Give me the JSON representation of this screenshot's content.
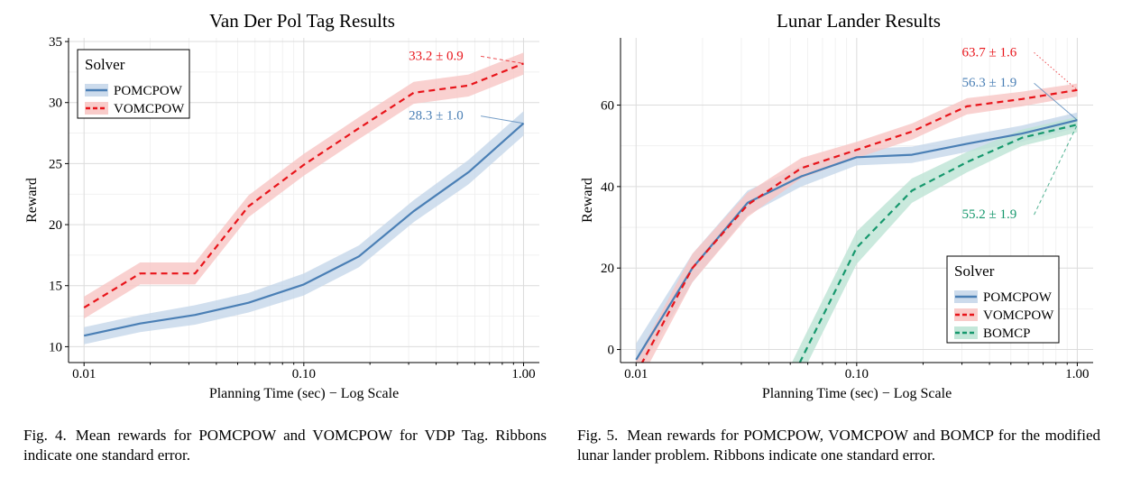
{
  "charts": [
    {
      "title": "Van Der Pol Tag Results",
      "chart_data": {
        "type": "line",
        "title": "Van Der Pol Tag Results",
        "xlabel": "Planning Time (sec) − Log Scale",
        "ylabel": "Reward",
        "x_scale": "log",
        "xlim": [
          0.0085,
          1.18
        ],
        "ylim": [
          8.7,
          35.3
        ],
        "x_ticks": [
          0.01,
          0.1,
          1.0
        ],
        "x_tick_labels": [
          "0.01",
          "0.10",
          "1.00"
        ],
        "y_ticks": [
          10,
          15,
          20,
          25,
          30,
          35
        ],
        "y_tick_labels": [
          "10",
          "15",
          "20",
          "25",
          "30",
          "35"
        ],
        "grid": true,
        "legend": {
          "title": "Solver",
          "position": "top-left"
        },
        "series": [
          {
            "name": "POMCPOW",
            "color": "#4a7fb5",
            "ribbon_color": "#c6d7ea",
            "dash": "solid",
            "x": [
              0.01,
              0.018,
              0.032,
              0.056,
              0.1,
              0.178,
              0.316,
              0.562,
              1.0
            ],
            "y": [
              10.9,
              11.9,
              12.6,
              13.6,
              15.1,
              17.4,
              21.1,
              24.3,
              28.3
            ],
            "se": [
              0.7,
              0.7,
              0.8,
              0.8,
              0.9,
              0.9,
              0.9,
              1.0,
              1.0
            ]
          },
          {
            "name": "VOMCPOW",
            "color": "#e8141a",
            "ribbon_color": "#f8c6c4",
            "dash": "dashed",
            "x": [
              0.01,
              0.018,
              0.032,
              0.056,
              0.1,
              0.178,
              0.316,
              0.562,
              1.0
            ],
            "y": [
              13.2,
              16.0,
              16.0,
              21.5,
              24.9,
              27.9,
              30.8,
              31.4,
              33.2
            ],
            "se": [
              0.9,
              0.9,
              0.9,
              0.9,
              0.9,
              0.9,
              0.9,
              0.9,
              0.9
            ]
          }
        ],
        "annotations": [
          {
            "text": "33.2 ± 0.9",
            "color": "#e8141a",
            "x": 0.3,
            "y": 33.5,
            "target_x": 1.0,
            "target_y": 33.2,
            "line_dash": "dashed"
          },
          {
            "text": "28.3 ± 1.0",
            "color": "#4a7fb5",
            "x": 0.3,
            "y": 28.6,
            "target_x": 1.0,
            "target_y": 28.3,
            "line_dash": "solid"
          }
        ]
      }
    },
    {
      "title": "Lunar Lander Results",
      "chart_data": {
        "type": "line",
        "title": "Lunar Lander Results",
        "xlabel": "Planning Time (sec) − Log Scale",
        "ylabel": "Reward",
        "x_scale": "log",
        "xlim": [
          0.0085,
          1.18
        ],
        "ylim": [
          -3.2,
          76.5
        ],
        "x_ticks": [
          0.01,
          0.1,
          1.0
        ],
        "x_tick_labels": [
          "0.01",
          "0.10",
          "1.00"
        ],
        "y_ticks": [
          0,
          20,
          40,
          60
        ],
        "y_tick_labels": [
          "0",
          "20",
          "40",
          "60"
        ],
        "grid": true,
        "legend": {
          "title": "Solver",
          "position": "bottom-right"
        },
        "series": [
          {
            "name": "POMCPOW",
            "color": "#4a7fb5",
            "ribbon_color": "#c6d7ea",
            "dash": "solid",
            "x": [
              0.01,
              0.018,
              0.032,
              0.056,
              0.1,
              0.178,
              0.316,
              0.562,
              1.0
            ],
            "y": [
              -2.5,
              20.0,
              36.0,
              42.5,
              47.2,
              47.8,
              50.5,
              53.0,
              56.3
            ],
            "se": [
              4.0,
              3.5,
              3.0,
              2.5,
              2.0,
              2.0,
              2.0,
              2.0,
              1.9
            ]
          },
          {
            "name": "VOMCPOW",
            "color": "#e8141a",
            "ribbon_color": "#f8c6c4",
            "dash": "dashed",
            "x": [
              0.01,
              0.018,
              0.032,
              0.056,
              0.1,
              0.178,
              0.316,
              0.562,
              1.0
            ],
            "y": [
              -6.0,
              20.0,
              35.5,
              44.5,
              49.0,
              53.5,
              59.7,
              61.5,
              63.7
            ],
            "se": [
              3.5,
              3.5,
              3.0,
              2.5,
              2.0,
              2.0,
              2.0,
              1.8,
              1.6
            ]
          },
          {
            "name": "BOMCP",
            "color": "#16986d",
            "ribbon_color": "#bde4d5",
            "dash": "dashed",
            "x": [
              0.05,
              0.056,
              0.1,
              0.178,
              0.316,
              0.562,
              1.0
            ],
            "y": [
              -8.0,
              -2.5,
              25.0,
              39.0,
              46.0,
              52.0,
              55.2
            ],
            "se": [
              4.0,
              4.0,
              4.0,
              3.0,
              2.5,
              2.0,
              1.9
            ]
          }
        ],
        "annotations": [
          {
            "text": "63.7 ± 1.6",
            "color": "#e8141a",
            "x": 0.3,
            "y": 72.0,
            "target_x": 1.0,
            "target_y": 63.7,
            "line_dash": "dotted"
          },
          {
            "text": "56.3 ± 1.9",
            "color": "#4a7fb5",
            "x": 0.3,
            "y": 64.5,
            "target_x": 1.0,
            "target_y": 56.3,
            "line_dash": "solid"
          },
          {
            "text": "55.2 ± 1.9",
            "color": "#16986d",
            "x": 0.3,
            "y": 32.2,
            "target_x": 1.0,
            "target_y": 55.2,
            "line_dash": "dashed"
          }
        ]
      }
    }
  ],
  "captions": [
    {
      "label": "Fig. 4.",
      "text": "Mean rewards for POMCPOW and VOMCPOW for VDP Tag. Ribbons indicate one standard error."
    },
    {
      "label": "Fig. 5.",
      "text": "Mean rewards for POMCPOW, VOMCPOW and BOMCP for the modified lunar lander problem. Ribbons indicate one standard error."
    }
  ]
}
